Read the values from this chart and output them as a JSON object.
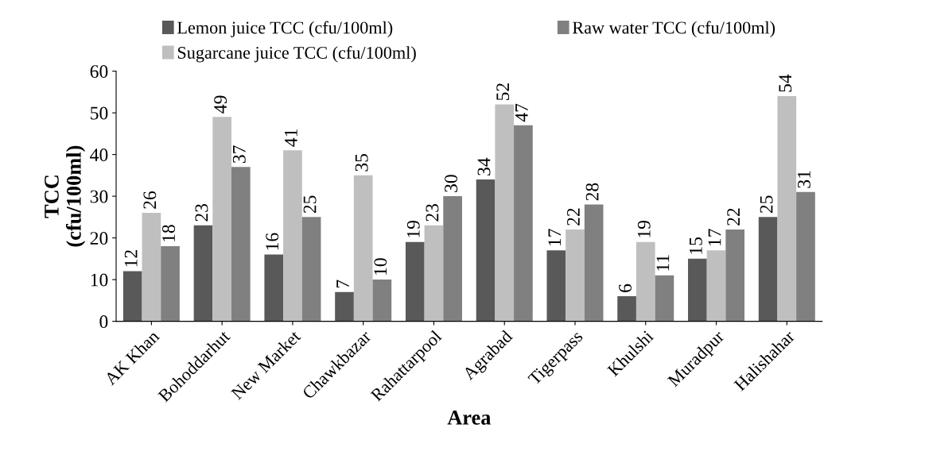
{
  "chart_data": {
    "type": "bar",
    "xlabel": "Area",
    "ylabel": "TCC\n(cfu/100ml)",
    "categories": [
      "AK Khan",
      "Bohoddarhut",
      "New Market",
      "Chawkbazar",
      "Rahattarpool",
      "Agrabad",
      "Tigerpass",
      "Khulshi",
      "Muradpur",
      "Halishahar"
    ],
    "series": [
      {
        "name": "Lemon juice TCC (cfu/100ml)",
        "color": "#595959",
        "values": [
          12,
          23,
          16,
          7,
          19,
          34,
          17,
          6,
          15,
          25
        ]
      },
      {
        "name": "Sugarcane juice TCC (cfu/100ml)",
        "color": "#bfbfbf",
        "values": [
          26,
          49,
          41,
          35,
          23,
          52,
          22,
          19,
          17,
          54
        ]
      },
      {
        "name": "Raw water TCC (cfu/100ml)",
        "color": "#808080",
        "values": [
          18,
          37,
          25,
          10,
          30,
          47,
          28,
          11,
          22,
          31
        ]
      }
    ],
    "ylim": [
      0,
      60
    ],
    "yticks": [
      0,
      10,
      20,
      30,
      40,
      50,
      60
    ],
    "data_labels": true,
    "legend": "top",
    "grid": false
  }
}
